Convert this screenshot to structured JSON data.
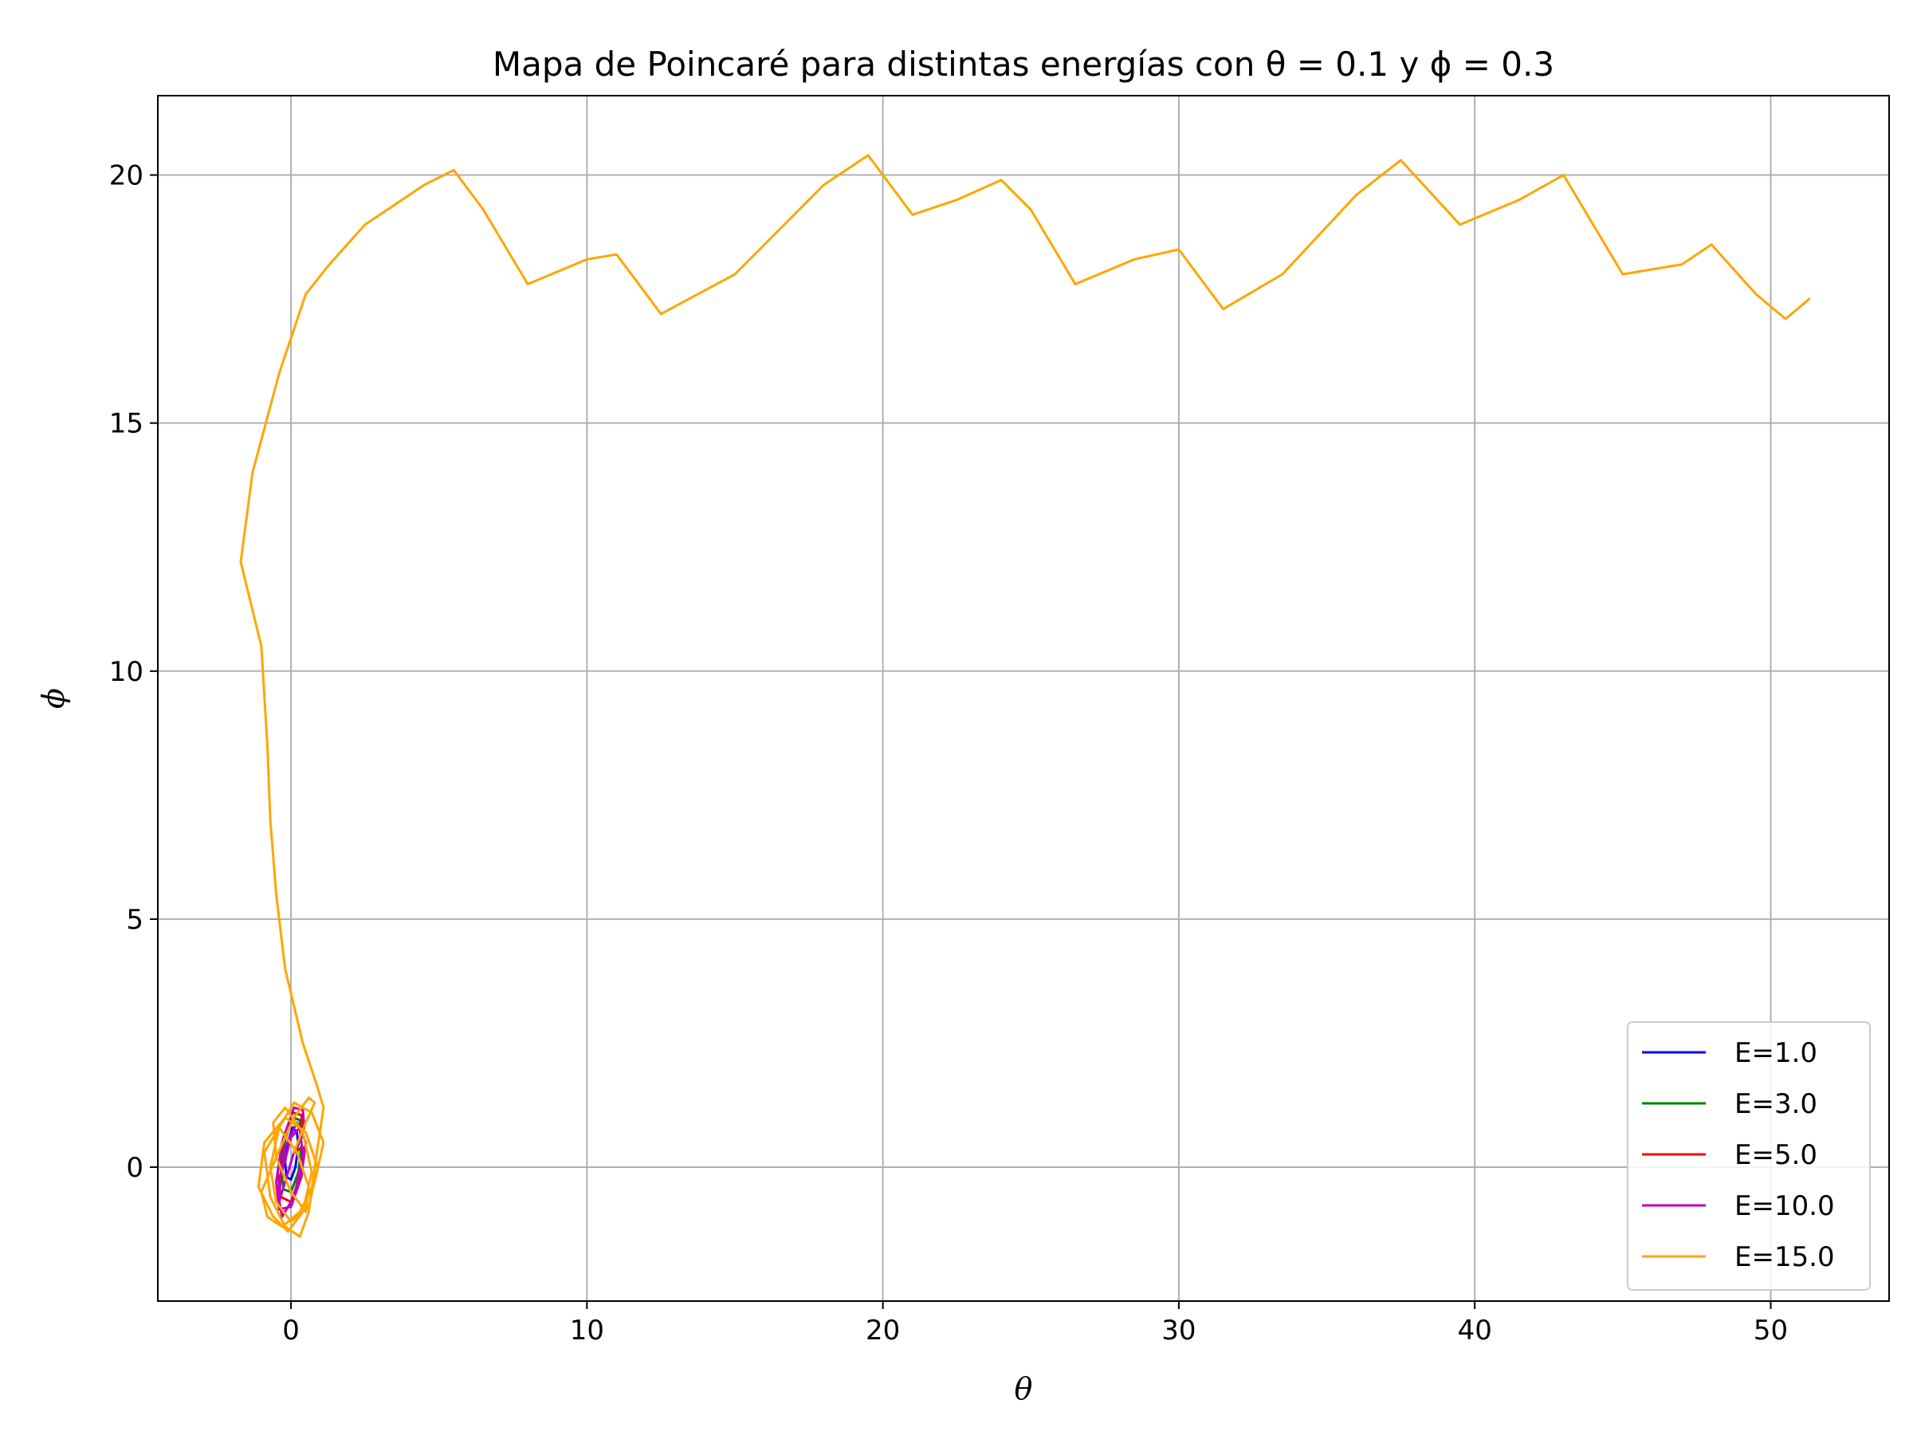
{
  "chart_data": {
    "type": "line",
    "title": "Mapa de Poincaré para distintas energías con θ = 0.1 y ϕ = 0.3",
    "xlabel": "θ",
    "ylabel": "ϕ",
    "xlim": [
      -4.5,
      54
    ],
    "ylim": [
      -2.7,
      21.6
    ],
    "xticks": [
      0,
      10,
      20,
      30,
      40,
      50
    ],
    "yticks": [
      0,
      5,
      10,
      15,
      20
    ],
    "grid": true,
    "legend_position": "bottom-right",
    "series": [
      {
        "name": "E=1.0",
        "color": "#0000ff",
        "x": [
          0.1,
          0.25,
          0.2,
          0.05,
          -0.1,
          -0.2,
          -0.15,
          0.0,
          0.15,
          0.22,
          0.1
        ],
        "y": [
          0.3,
          0.45,
          0.7,
          0.8,
          0.5,
          0.1,
          -0.2,
          -0.25,
          0.0,
          0.3,
          0.3
        ]
      },
      {
        "name": "E=3.0",
        "color": "#008000",
        "x": [
          0.1,
          0.35,
          0.3,
          0.05,
          -0.2,
          -0.35,
          -0.25,
          0.0,
          0.25,
          0.35,
          0.1
        ],
        "y": [
          0.3,
          0.6,
          0.95,
          1.0,
          0.55,
          0.0,
          -0.45,
          -0.5,
          -0.1,
          0.4,
          0.3
        ]
      },
      {
        "name": "E=5.0",
        "color": "#ff0000",
        "x": [
          0.1,
          0.4,
          0.35,
          0.05,
          -0.25,
          -0.45,
          -0.35,
          0.0,
          0.3,
          0.42,
          0.1
        ],
        "y": [
          0.3,
          0.7,
          1.05,
          1.1,
          0.6,
          -0.1,
          -0.6,
          -0.7,
          -0.2,
          0.4,
          0.3
        ]
      },
      {
        "name": "E=10.0",
        "color": "#bf00bf",
        "x": [
          0.1,
          0.45,
          0.4,
          0.1,
          -0.3,
          -0.5,
          -0.4,
          0.0,
          0.35,
          0.5,
          0.2,
          -0.2,
          -0.45,
          -0.3,
          0.1,
          0.4,
          0.3,
          0.0,
          -0.35,
          -0.4,
          0.1
        ],
        "y": [
          0.3,
          0.8,
          1.15,
          1.2,
          0.5,
          -0.3,
          -0.85,
          -0.8,
          -0.2,
          0.5,
          0.9,
          0.4,
          -0.5,
          -1.0,
          -0.6,
          0.2,
          0.8,
          0.6,
          -0.2,
          -0.7,
          0.3
        ]
      },
      {
        "name": "E=15.0",
        "color": "#ffa500",
        "x": [
          0.1,
          0.5,
          0.8,
          0.6,
          0.1,
          -0.5,
          -1.0,
          -0.8,
          -0.3,
          0.3,
          0.8,
          1.1,
          0.7,
          0.1,
          -0.4,
          -0.7,
          -0.5,
          0.0,
          0.6,
          0.9,
          0.5,
          -0.2,
          -0.9,
          -1.1,
          -0.6,
          -0.1,
          0.4,
          0.7,
          0.4,
          -0.2,
          -0.6,
          -0.5,
          0.0,
          0.5,
          0.6,
          0.2,
          -0.4,
          -0.9,
          -0.7,
          -0.2,
          0.3,
          0.6,
          0.8,
          1.0,
          1.1,
          0.9,
          0.4,
          -0.2,
          -0.5,
          -0.7,
          -0.8,
          -1.0,
          -1.7,
          -1.3,
          -0.4,
          0.5,
          1.3,
          2.5,
          4.5,
          5.5,
          6.5,
          8.0,
          10.0,
          11.0,
          12.5,
          15.0,
          18.0,
          19.5,
          21.0,
          22.5,
          24.0,
          25.0,
          26.5,
          28.5,
          30.0,
          31.5,
          33.5,
          36.0,
          37.5,
          39.5,
          41.5,
          43.0,
          45.0,
          47.0,
          48.0,
          49.5,
          50.5,
          51.3
        ],
        "y": [
          0.3,
          0.9,
          1.3,
          1.4,
          1.0,
          0.2,
          -0.5,
          -1.0,
          -1.2,
          -0.9,
          -0.3,
          0.5,
          1.1,
          1.3,
          0.8,
          0.0,
          -0.7,
          -1.1,
          -0.8,
          0.0,
          0.7,
          1.0,
          0.5,
          -0.4,
          -1.0,
          -1.3,
          -0.9,
          -0.1,
          0.7,
          1.2,
          0.9,
          0.2,
          -0.5,
          -0.9,
          -0.4,
          0.3,
          0.8,
          0.3,
          -0.6,
          -1.2,
          -1.4,
          -0.9,
          0.0,
          0.8,
          1.2,
          1.6,
          2.5,
          4.0,
          5.5,
          7.0,
          8.5,
          10.5,
          12.2,
          14.0,
          16.0,
          17.6,
          18.2,
          19.0,
          19.8,
          20.1,
          19.3,
          17.8,
          18.3,
          18.4,
          17.2,
          18.0,
          19.8,
          20.4,
          19.2,
          19.5,
          19.9,
          19.3,
          17.8,
          18.3,
          18.5,
          17.3,
          18.0,
          19.6,
          20.3,
          19.0,
          19.5,
          20.0,
          18.0,
          18.2,
          18.6,
          17.6,
          17.1,
          17.5
        ]
      }
    ]
  }
}
